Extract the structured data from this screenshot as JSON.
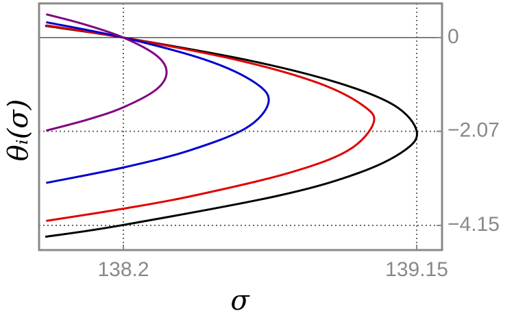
{
  "chart_data": {
    "type": "line",
    "xlabel": "σ",
    "ylabel": "θᵢ(σ)",
    "xlim": [
      137.927,
      139.232
    ],
    "ylim": [
      -4.694,
      0.755
    ],
    "xticks": [
      138.2,
      139.15
    ],
    "yticks": [
      0,
      {
        "value": -2.07,
        "label": "−2.07"
      },
      {
        "value": -4.15,
        "label": "−4.15"
      }
    ],
    "grid": true,
    "series": [
      {
        "color": "#000000",
        "x": [
          137.947,
          138.2,
          138.604,
          138.896,
          139.078,
          139.15,
          139.109,
          138.958,
          138.697,
          138.191,
          137.947
        ],
        "values": [
          0.26,
          0,
          -0.5,
          -1,
          -1.5,
          -2.07,
          -2.5,
          -3,
          -3.5,
          -4.15,
          -4.4
        ]
      },
      {
        "color": "#e00000",
        "x": [
          137.95,
          138.2,
          138.572,
          138.83,
          138.976,
          139.01,
          138.926,
          138.731,
          138.422,
          138.2,
          137.95
        ],
        "values": [
          0.27,
          0,
          -0.5,
          -1,
          -1.5,
          -1.89,
          -2.5,
          -3,
          -3.5,
          -3.78,
          -4.05
        ]
      },
      {
        "color": "#0000cc",
        "x": [
          137.95,
          138.2,
          138.47,
          138.627,
          138.67,
          138.597,
          138.411,
          138.2,
          137.95
        ],
        "values": [
          0.34,
          0,
          -0.5,
          -1,
          -1.435,
          -2,
          -2.5,
          -2.87,
          -3.21
        ]
      },
      {
        "color": "#800080",
        "x": [
          137.95,
          138.07,
          138.2,
          138.308,
          138.34,
          138.306,
          138.2,
          138.09,
          137.95
        ],
        "values": [
          0.515,
          0.3,
          0,
          -0.4,
          -0.77,
          -1.15,
          -1.54,
          -1.8,
          -2.055
        ]
      }
    ]
  }
}
